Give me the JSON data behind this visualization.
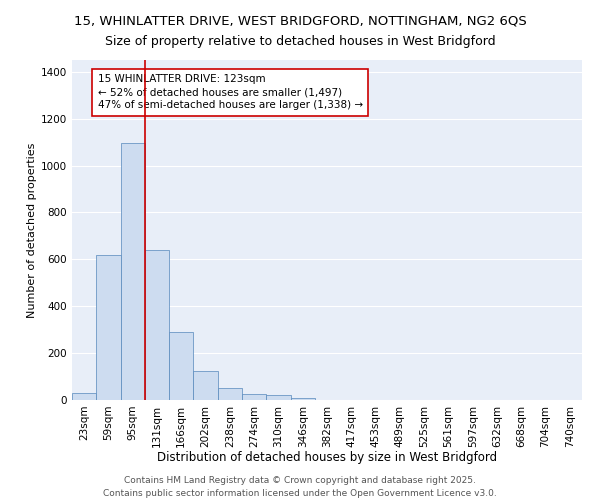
{
  "title_line1": "15, WHINLATTER DRIVE, WEST BRIDGFORD, NOTTINGHAM, NG2 6QS",
  "title_line2": "Size of property relative to detached houses in West Bridgford",
  "xlabel": "Distribution of detached houses by size in West Bridgford",
  "ylabel": "Number of detached properties",
  "bar_color": "#cddcf0",
  "bar_edge_color": "#5588bb",
  "background_color": "#e8eef8",
  "grid_color": "#ffffff",
  "categories": [
    "23sqm",
    "59sqm",
    "95sqm",
    "131sqm",
    "166sqm",
    "202sqm",
    "238sqm",
    "274sqm",
    "310sqm",
    "346sqm",
    "382sqm",
    "417sqm",
    "453sqm",
    "489sqm",
    "525sqm",
    "561sqm",
    "597sqm",
    "632sqm",
    "668sqm",
    "704sqm",
    "740sqm"
  ],
  "values": [
    30,
    620,
    1095,
    640,
    290,
    125,
    50,
    25,
    20,
    10,
    0,
    0,
    0,
    0,
    0,
    0,
    0,
    0,
    0,
    0,
    0
  ],
  "ylim": [
    0,
    1450
  ],
  "yticks": [
    0,
    200,
    400,
    600,
    800,
    1000,
    1200,
    1400
  ],
  "vline_x_idx": 2.5,
  "vline_color": "#cc0000",
  "annotation_text": "15 WHINLATTER DRIVE: 123sqm\n← 52% of detached houses are smaller (1,497)\n47% of semi-detached houses are larger (1,338) →",
  "annotation_box_color": "#cc0000",
  "footer_line1": "Contains HM Land Registry data © Crown copyright and database right 2025.",
  "footer_line2": "Contains public sector information licensed under the Open Government Licence v3.0.",
  "title_fontsize": 9.5,
  "subtitle_fontsize": 9,
  "xlabel_fontsize": 8.5,
  "ylabel_fontsize": 8,
  "tick_fontsize": 7.5,
  "annotation_fontsize": 7.5,
  "footer_fontsize": 6.5
}
